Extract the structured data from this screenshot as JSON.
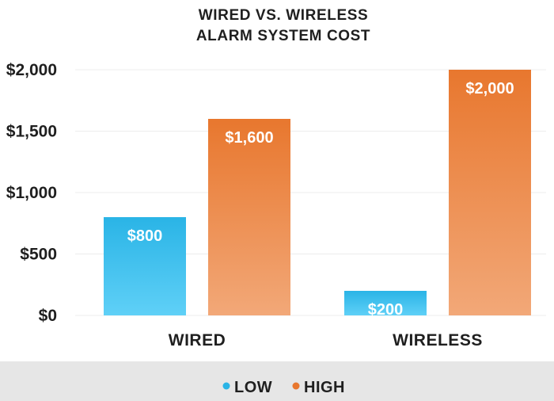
{
  "chart_data": {
    "type": "bar",
    "title": [
      "WIRED VS. WIRELESS",
      "ALARM SYSTEM COST"
    ],
    "categories": [
      "WIRED",
      "WIRELESS"
    ],
    "series": [
      {
        "name": "LOW",
        "values": [
          800,
          200
        ],
        "data_labels": [
          "$800",
          "$200"
        ],
        "color": "#2ab4e6",
        "color_light": "#5fd0f7"
      },
      {
        "name": "HIGH",
        "values": [
          1600,
          2000
        ],
        "data_labels": [
          "$1,600",
          "$2,000"
        ],
        "color": "#e8772e",
        "color_light": "#f2a878"
      }
    ],
    "ylim": [
      0,
      2000
    ],
    "y_ticks": [
      0,
      500,
      1000,
      1500,
      2000
    ],
    "y_tick_labels": [
      "$0",
      "$500",
      "$1,000",
      "$1,500",
      "$2,000"
    ],
    "grid": true,
    "legend_position": "bottom"
  },
  "colors": {
    "legend_band": "#e6e6e6",
    "text": "#1f1f1f",
    "grid": "#ececec"
  }
}
